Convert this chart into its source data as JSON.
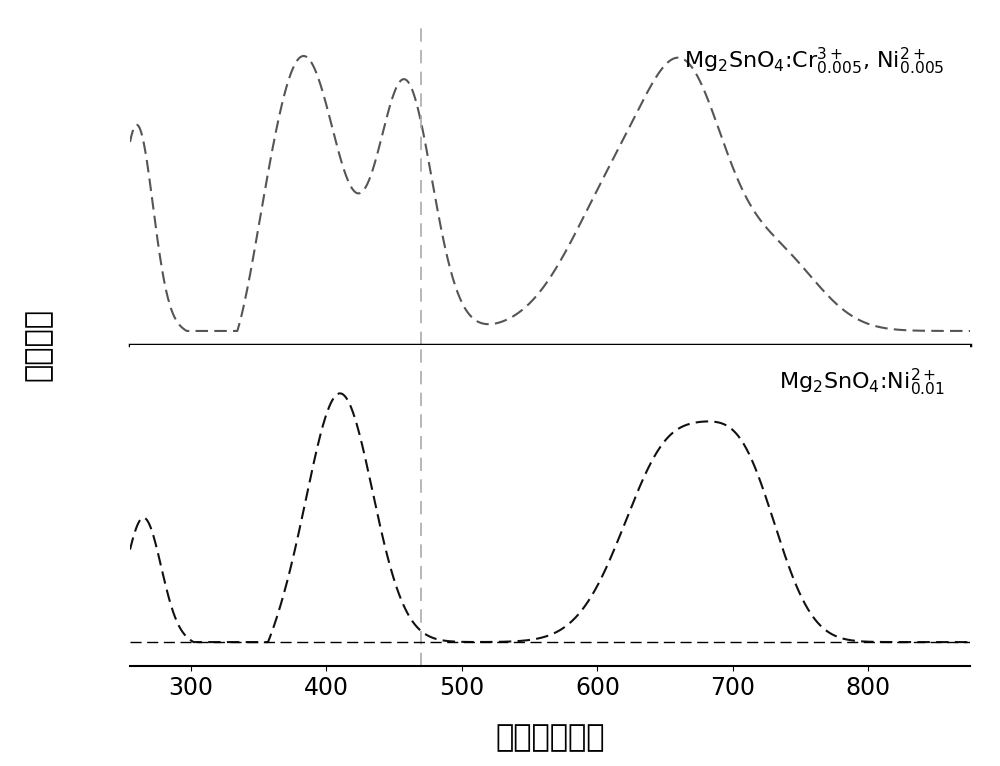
{
  "xmin": 255,
  "xmax": 875,
  "xticks": [
    300,
    400,
    500,
    600,
    700,
    800
  ],
  "xlabel": "波长（纳米）",
  "ylabel": "相对强度",
  "vline_x": 470,
  "top_label": "Mg$_2$SnO$_4$:Cr$^{3+}_{0.005}$, Ni$^{2+}_{0.005}$",
  "bottom_label": "Mg$_2$SnO$_4$:Ni$^{2+}_{0.01}$",
  "line_color_top": "#555555",
  "line_color_bottom": "#111111",
  "background_color": "#ffffff",
  "xlabel_fontsize": 22,
  "ylabel_fontsize": 22,
  "tick_fontsize": 17,
  "label_fontsize": 16
}
